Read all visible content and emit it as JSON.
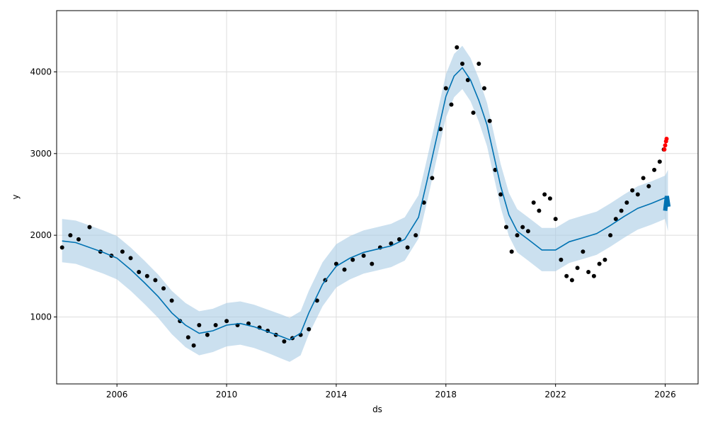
{
  "chart_data": {
    "type": "line",
    "xlabel": "ds",
    "ylabel": "y",
    "xlim": [
      2003.8,
      2027.2
    ],
    "ylim": [
      180,
      4750
    ],
    "grid": true,
    "x_ticks": [
      {
        "value": 2006,
        "label": "2006"
      },
      {
        "value": 2010,
        "label": "2010"
      },
      {
        "value": 2014,
        "label": "2014"
      },
      {
        "value": 2018,
        "label": "2018"
      },
      {
        "value": 2022,
        "label": "2022"
      },
      {
        "value": 2026,
        "label": "2026"
      }
    ],
    "y_ticks": [
      {
        "value": 1000,
        "label": "1000"
      },
      {
        "value": 2000,
        "label": "2000"
      },
      {
        "value": 3000,
        "label": "3000"
      },
      {
        "value": 4000,
        "label": "4000"
      }
    ],
    "colors": {
      "trend": "#0072B2",
      "band": "#a8cce4",
      "observed": "#000000",
      "recent": "#ff0000"
    },
    "forecast": {
      "x": [
        2004.0,
        2004.5,
        2005.0,
        2005.5,
        2006.0,
        2006.5,
        2007.0,
        2007.5,
        2008.0,
        2008.5,
        2009.0,
        2009.5,
        2010.0,
        2010.5,
        2011.0,
        2011.5,
        2012.0,
        2012.3,
        2012.7,
        2013.0,
        2013.5,
        2014.0,
        2014.5,
        2015.0,
        2015.5,
        2016.0,
        2016.5,
        2017.0,
        2017.3,
        2017.6,
        2018.0,
        2018.3,
        2018.6,
        2018.9,
        2019.2,
        2019.5,
        2019.8,
        2020.0,
        2020.3,
        2020.6,
        2021.0,
        2021.5,
        2022.0,
        2022.5,
        2023.0,
        2023.5,
        2024.0,
        2024.5,
        2025.0,
        2025.5,
        2026.0,
        2026.1
      ],
      "yhat": [
        1930,
        1910,
        1850,
        1790,
        1720,
        1580,
        1420,
        1250,
        1050,
        900,
        800,
        830,
        900,
        920,
        880,
        820,
        760,
        720,
        800,
        1050,
        1400,
        1620,
        1720,
        1790,
        1830,
        1870,
        1950,
        2220,
        2650,
        3100,
        3700,
        3950,
        4050,
        3900,
        3650,
        3350,
        2900,
        2600,
        2250,
        2050,
        1950,
        1820,
        1820,
        1920,
        1970,
        2020,
        2120,
        2230,
        2330,
        2390,
        2460,
        2420
      ],
      "yhat_lower": [
        1670,
        1650,
        1590,
        1530,
        1460,
        1320,
        1160,
        990,
        790,
        630,
        530,
        570,
        640,
        660,
        620,
        560,
        490,
        450,
        530,
        790,
        1130,
        1360,
        1460,
        1530,
        1570,
        1610,
        1690,
        1960,
        2390,
        2840,
        3440,
        3690,
        3790,
        3640,
        3390,
        3090,
        2640,
        2340,
        1990,
        1790,
        1690,
        1560,
        1560,
        1660,
        1710,
        1760,
        1860,
        1970,
        2070,
        2130,
        2200,
        2050
      ],
      "yhat_upper": [
        2200,
        2180,
        2120,
        2060,
        1990,
        1850,
        1690,
        1520,
        1320,
        1170,
        1070,
        1100,
        1170,
        1190,
        1150,
        1090,
        1030,
        990,
        1070,
        1320,
        1670,
        1890,
        1990,
        2060,
        2100,
        2140,
        2220,
        2490,
        2920,
        3370,
        3970,
        4220,
        4320,
        4170,
        3920,
        3620,
        3170,
        2870,
        2520,
        2320,
        2220,
        2090,
        2090,
        2190,
        2240,
        2290,
        2390,
        2500,
        2600,
        2660,
        2730,
        2800
      ]
    },
    "observed": {
      "x": [
        2004.0,
        2004.3,
        2004.6,
        2005.0,
        2005.4,
        2005.8,
        2006.2,
        2006.5,
        2006.8,
        2007.1,
        2007.4,
        2007.7,
        2008.0,
        2008.3,
        2008.6,
        2008.8,
        2009.0,
        2009.3,
        2009.6,
        2010.0,
        2010.4,
        2010.8,
        2011.2,
        2011.5,
        2011.8,
        2012.1,
        2012.4,
        2012.7,
        2013.0,
        2013.3,
        2013.6,
        2014.0,
        2014.3,
        2014.6,
        2015.0,
        2015.3,
        2015.6,
        2016.0,
        2016.3,
        2016.6,
        2016.9,
        2017.2,
        2017.5,
        2017.8,
        2018.0,
        2018.2,
        2018.4,
        2018.6,
        2018.8,
        2019.0,
        2019.2,
        2019.4,
        2019.6,
        2019.8,
        2020.0,
        2020.2,
        2020.4,
        2020.6,
        2020.8,
        2021.0,
        2021.2,
        2021.4,
        2021.6,
        2021.8,
        2022.0,
        2022.2,
        2022.4,
        2022.6,
        2022.8,
        2023.0,
        2023.2,
        2023.4,
        2023.6,
        2023.8,
        2024.0,
        2024.2,
        2024.4,
        2024.6,
        2024.8,
        2025.0,
        2025.2,
        2025.4,
        2025.6,
        2025.8,
        2025.95
      ],
      "y": [
        1850,
        2000,
        1950,
        2100,
        1800,
        1750,
        1800,
        1720,
        1550,
        1500,
        1450,
        1350,
        1200,
        950,
        750,
        650,
        900,
        780,
        900,
        950,
        900,
        920,
        870,
        830,
        780,
        700,
        740,
        780,
        850,
        1200,
        1450,
        1650,
        1580,
        1700,
        1750,
        1650,
        1850,
        1900,
        1950,
        1850,
        2000,
        2400,
        2700,
        3300,
        3800,
        3600,
        4300,
        4100,
        3900,
        3500,
        4100,
        3800,
        3400,
        2800,
        2500,
        2100,
        1800,
        2000,
        2100,
        2050,
        2400,
        2300,
        2500,
        2450,
        2200,
        1700,
        1500,
        1450,
        1600,
        1800,
        1550,
        1500,
        1650,
        1700,
        2000,
        2200,
        2300,
        2400,
        2550,
        2500,
        2700,
        2600,
        2800,
        2900,
        3050
      ]
    },
    "recent": {
      "x": [
        2025.97,
        2026.0,
        2026.03,
        2026.05
      ],
      "y": [
        3050,
        3100,
        3150,
        3180
      ]
    },
    "forecast_tail": {
      "x": [
        2026.0,
        2026.06,
        2026.12
      ],
      "yhat": [
        2300,
        2480,
        2350
      ]
    }
  }
}
